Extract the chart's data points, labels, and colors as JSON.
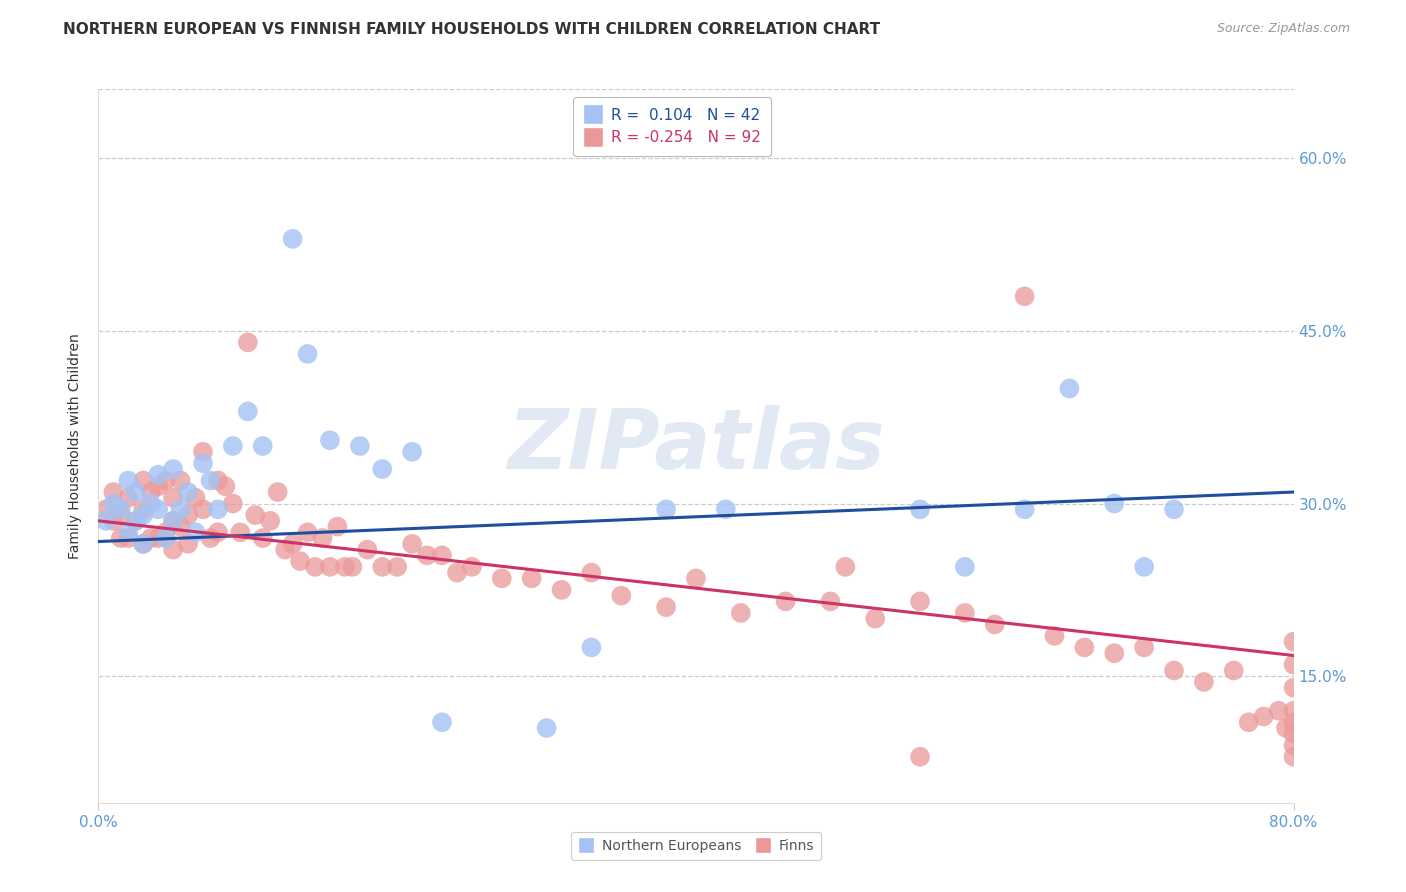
{
  "title": "NORTHERN EUROPEAN VS FINNISH FAMILY HOUSEHOLDS WITH CHILDREN CORRELATION CHART",
  "source": "Source: ZipAtlas.com",
  "ylabel": "Family Households with Children",
  "ytick_labels": [
    "15.0%",
    "30.0%",
    "45.0%",
    "60.0%"
  ],
  "ytick_values": [
    0.15,
    0.3,
    0.45,
    0.6
  ],
  "xlim": [
    0.0,
    0.8
  ],
  "ylim": [
    0.04,
    0.66
  ],
  "blue_color": "#a4c2f4",
  "pink_color": "#ea9999",
  "blue_line_color": "#1f4e9e",
  "pink_line_color": "#cc3366",
  "legend_R_blue": "0.104",
  "legend_N_blue": "42",
  "legend_R_pink": "-0.254",
  "legend_N_pink": "92",
  "blue_x": [
    0.005,
    0.01,
    0.015,
    0.02,
    0.02,
    0.025,
    0.025,
    0.03,
    0.03,
    0.035,
    0.04,
    0.04,
    0.045,
    0.05,
    0.05,
    0.055,
    0.06,
    0.065,
    0.07,
    0.075,
    0.08,
    0.09,
    0.1,
    0.11,
    0.13,
    0.14,
    0.155,
    0.175,
    0.19,
    0.21,
    0.23,
    0.3,
    0.33,
    0.38,
    0.42,
    0.55,
    0.58,
    0.62,
    0.65,
    0.68,
    0.7,
    0.72
  ],
  "blue_y": [
    0.285,
    0.3,
    0.295,
    0.275,
    0.32,
    0.31,
    0.285,
    0.29,
    0.265,
    0.3,
    0.295,
    0.325,
    0.27,
    0.33,
    0.285,
    0.295,
    0.31,
    0.275,
    0.335,
    0.32,
    0.295,
    0.35,
    0.38,
    0.35,
    0.53,
    0.43,
    0.355,
    0.35,
    0.33,
    0.345,
    0.11,
    0.105,
    0.175,
    0.295,
    0.295,
    0.295,
    0.245,
    0.295,
    0.4,
    0.3,
    0.245,
    0.295
  ],
  "pink_x": [
    0.005,
    0.01,
    0.01,
    0.015,
    0.015,
    0.02,
    0.02,
    0.025,
    0.03,
    0.03,
    0.03,
    0.035,
    0.035,
    0.04,
    0.04,
    0.045,
    0.045,
    0.05,
    0.05,
    0.05,
    0.055,
    0.055,
    0.06,
    0.06,
    0.065,
    0.07,
    0.07,
    0.075,
    0.08,
    0.08,
    0.085,
    0.09,
    0.095,
    0.1,
    0.105,
    0.11,
    0.115,
    0.12,
    0.125,
    0.13,
    0.135,
    0.14,
    0.145,
    0.15,
    0.155,
    0.16,
    0.165,
    0.17,
    0.18,
    0.19,
    0.2,
    0.21,
    0.22,
    0.23,
    0.24,
    0.25,
    0.27,
    0.29,
    0.31,
    0.33,
    0.35,
    0.38,
    0.4,
    0.43,
    0.46,
    0.49,
    0.52,
    0.55,
    0.58,
    0.6,
    0.62,
    0.64,
    0.66,
    0.68,
    0.7,
    0.72,
    0.74,
    0.76,
    0.77,
    0.78,
    0.79,
    0.795,
    0.8,
    0.8,
    0.8,
    0.8,
    0.8,
    0.8,
    0.8,
    0.8,
    0.5,
    0.55
  ],
  "pink_y": [
    0.295,
    0.31,
    0.285,
    0.29,
    0.27,
    0.305,
    0.27,
    0.285,
    0.32,
    0.295,
    0.265,
    0.31,
    0.27,
    0.315,
    0.27,
    0.32,
    0.275,
    0.305,
    0.285,
    0.26,
    0.32,
    0.28,
    0.29,
    0.265,
    0.305,
    0.345,
    0.295,
    0.27,
    0.32,
    0.275,
    0.315,
    0.3,
    0.275,
    0.44,
    0.29,
    0.27,
    0.285,
    0.31,
    0.26,
    0.265,
    0.25,
    0.275,
    0.245,
    0.27,
    0.245,
    0.28,
    0.245,
    0.245,
    0.26,
    0.245,
    0.245,
    0.265,
    0.255,
    0.255,
    0.24,
    0.245,
    0.235,
    0.235,
    0.225,
    0.24,
    0.22,
    0.21,
    0.235,
    0.205,
    0.215,
    0.215,
    0.2,
    0.215,
    0.205,
    0.195,
    0.48,
    0.185,
    0.175,
    0.17,
    0.175,
    0.155,
    0.145,
    0.155,
    0.11,
    0.115,
    0.12,
    0.105,
    0.1,
    0.16,
    0.14,
    0.12,
    0.18,
    0.11,
    0.09,
    0.08,
    0.245,
    0.08
  ],
  "blue_line_x0": 0.0,
  "blue_line_y0": 0.267,
  "blue_line_x1": 0.8,
  "blue_line_y1": 0.31,
  "pink_line_x0": 0.0,
  "pink_line_y0": 0.285,
  "pink_line_x1": 0.8,
  "pink_line_y1": 0.168,
  "watermark": "ZIPatlas",
  "background_color": "#ffffff",
  "grid_color": "#cccccc",
  "tick_color": "#5b9bd5",
  "title_fontsize": 11,
  "ylabel_fontsize": 10,
  "tick_fontsize": 11,
  "legend_fontsize": 11,
  "source_fontsize": 9
}
